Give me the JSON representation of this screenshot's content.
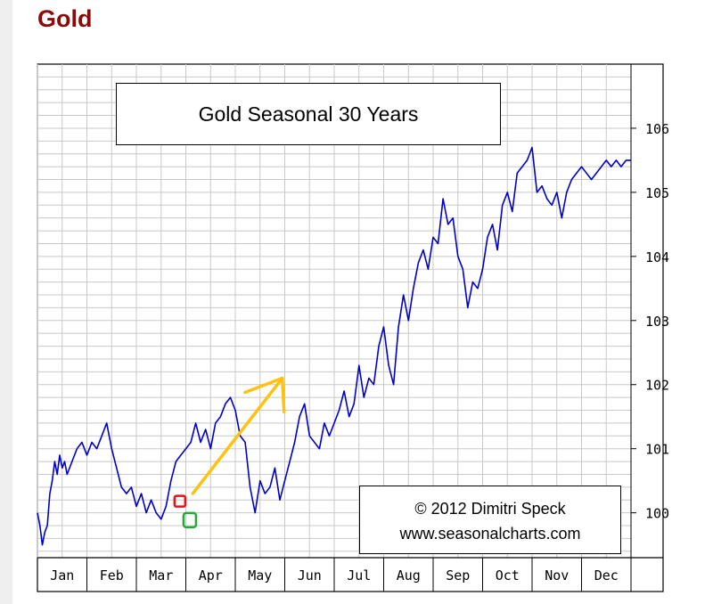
{
  "page": {
    "heading": "Gold"
  },
  "chart_data": {
    "type": "line",
    "title": "Gold Seasonal 30 Years",
    "credit": {
      "line1": "© 2012  Dimitri Speck",
      "line2": "www.seasonalcharts.com"
    },
    "x_months": [
      "Jan",
      "Feb",
      "Mar",
      "Apr",
      "May",
      "Jun",
      "Jul",
      "Aug",
      "Sep",
      "Oct",
      "Nov",
      "Dec"
    ],
    "y_ticks": [
      100,
      101,
      102,
      103,
      104,
      105,
      106
    ],
    "ylim": [
      99.3,
      107.0
    ],
    "xlim": [
      0,
      12
    ],
    "grid": true,
    "series": [
      {
        "color": "#0000cc",
        "x": [
          0.0,
          0.05,
          0.1,
          0.15,
          0.2,
          0.25,
          0.3,
          0.35,
          0.4,
          0.45,
          0.5,
          0.55,
          0.6,
          0.7,
          0.8,
          0.9,
          1.0,
          1.1,
          1.2,
          1.3,
          1.4,
          1.5,
          1.6,
          1.7,
          1.8,
          1.9,
          2.0,
          2.1,
          2.2,
          2.3,
          2.4,
          2.5,
          2.6,
          2.7,
          2.8,
          2.9,
          3.0,
          3.1,
          3.2,
          3.3,
          3.4,
          3.5,
          3.6,
          3.7,
          3.8,
          3.9,
          4.0,
          4.1,
          4.2,
          4.3,
          4.4,
          4.5,
          4.6,
          4.7,
          4.8,
          4.9,
          5.0,
          5.1,
          5.2,
          5.3,
          5.4,
          5.5,
          5.6,
          5.7,
          5.8,
          5.9,
          6.0,
          6.1,
          6.2,
          6.3,
          6.4,
          6.5,
          6.6,
          6.7,
          6.8,
          6.9,
          7.0,
          7.1,
          7.2,
          7.3,
          7.4,
          7.5,
          7.6,
          7.7,
          7.8,
          7.9,
          8.0,
          8.1,
          8.2,
          8.3,
          8.4,
          8.5,
          8.6,
          8.7,
          8.8,
          8.9,
          9.0,
          9.1,
          9.2,
          9.3,
          9.4,
          9.5,
          9.6,
          9.7,
          9.8,
          9.9,
          10.0,
          10.1,
          10.2,
          10.3,
          10.4,
          10.5,
          10.6,
          10.7,
          10.8,
          10.9,
          11.0,
          11.1,
          11.2,
          11.3,
          11.4,
          11.5,
          11.6,
          11.7,
          11.8,
          11.9,
          12.0
        ],
        "y": [
          100.0,
          99.8,
          99.5,
          99.7,
          99.8,
          100.3,
          100.5,
          100.8,
          100.6,
          100.9,
          100.7,
          100.8,
          100.6,
          100.8,
          101.0,
          101.1,
          100.9,
          101.1,
          101.0,
          101.2,
          101.4,
          101.0,
          100.7,
          100.4,
          100.3,
          100.4,
          100.1,
          100.3,
          100.0,
          100.2,
          100.0,
          99.9,
          100.1,
          100.5,
          100.8,
          100.9,
          101.0,
          101.1,
          101.4,
          101.1,
          101.3,
          101.0,
          101.4,
          101.5,
          101.7,
          101.8,
          101.6,
          101.2,
          101.1,
          100.4,
          100.0,
          100.5,
          100.3,
          100.4,
          100.7,
          100.2,
          100.5,
          100.8,
          101.1,
          101.5,
          101.7,
          101.2,
          101.1,
          101.0,
          101.4,
          101.2,
          101.4,
          101.6,
          101.9,
          101.5,
          101.7,
          102.3,
          101.8,
          102.1,
          102.0,
          102.6,
          102.9,
          102.3,
          102.0,
          102.9,
          103.4,
          103.0,
          103.5,
          103.9,
          104.1,
          103.8,
          104.3,
          104.2,
          104.9,
          104.5,
          104.6,
          104.0,
          103.8,
          103.2,
          103.6,
          103.5,
          103.8,
          104.3,
          104.5,
          104.1,
          104.8,
          105.0,
          104.7,
          105.3,
          105.4,
          105.5,
          105.7,
          105.0,
          105.1,
          104.9,
          104.8,
          105.0,
          104.6,
          105.0,
          105.2,
          105.3,
          105.4,
          105.3,
          105.2,
          105.3,
          105.4,
          105.5,
          105.4,
          105.5,
          105.4,
          105.5,
          105.5
        ]
      }
    ],
    "annotations": {
      "red_marker": {
        "x": 2.88,
        "y": 100.18,
        "color": "#ee1111"
      },
      "green_marker": {
        "x": 3.08,
        "y": 99.9,
        "color": "#22aa33"
      },
      "arrow": {
        "x1": 3.14,
        "y1": 100.3,
        "x2": 4.95,
        "y2": 102.1,
        "color": "#ffc20e"
      }
    }
  }
}
